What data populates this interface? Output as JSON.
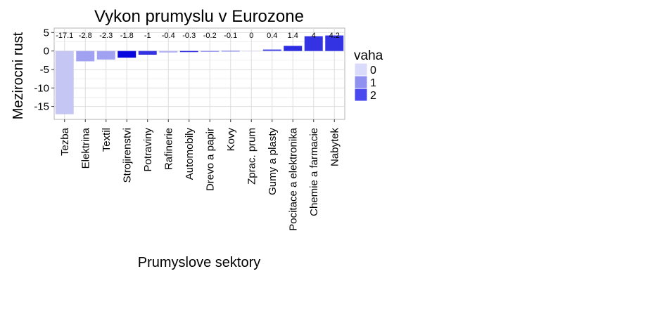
{
  "chart_data": {
    "type": "bar",
    "title": "Vykon prumyslu v Eurozone",
    "xlabel": "Prumyslove sektory",
    "ylabel": "Mezirocni rust",
    "categories": [
      "Tezba",
      "Elektrina",
      "Textil",
      "Strojirenstvi",
      "Potraviny",
      "Rafinerie",
      "Automobily",
      "Drevo a papir",
      "Kovy",
      "Zprac. prum",
      "Gumy a plasty",
      "Pocitace a elektronika",
      "Chemie a farmacie",
      "Nabytek"
    ],
    "values": [
      -17.1,
      -2.8,
      -2.3,
      -1.8,
      -1,
      -0.4,
      -0.3,
      -0.2,
      -0.1,
      0,
      0.4,
      1.4,
      4,
      4.2
    ],
    "data_labels": [
      "-17.1",
      "-2.8",
      "-2.3",
      "-1.8",
      "-1",
      "-0.4",
      "-0.3",
      "-0.2",
      "-0.1",
      "0",
      "0.4",
      "1.4",
      "4",
      "4.2"
    ],
    "weights": [
      0.3,
      0.8,
      0.8,
      2.9,
      2.3,
      0.6,
      2.5,
      1.5,
      2.7,
      0.2,
      1.9,
      2.4,
      2.3,
      2.3
    ],
    "yticks": [
      5,
      0,
      -5,
      -10,
      -15
    ],
    "ylim": [
      -18.5,
      6.2
    ],
    "grid": true,
    "legend": {
      "title": "vaha",
      "placement": "right",
      "entries": [
        {
          "label": "0",
          "color": "#dadafa"
        },
        {
          "label": "1",
          "color": "#9090f0"
        },
        {
          "label": "2",
          "color": "#4848ee"
        }
      ]
    },
    "colors": {
      "low": "#dcdcf8",
      "high": "#0000dd",
      "grid": "#dedede",
      "panel_border": "#b3b3b3"
    }
  }
}
